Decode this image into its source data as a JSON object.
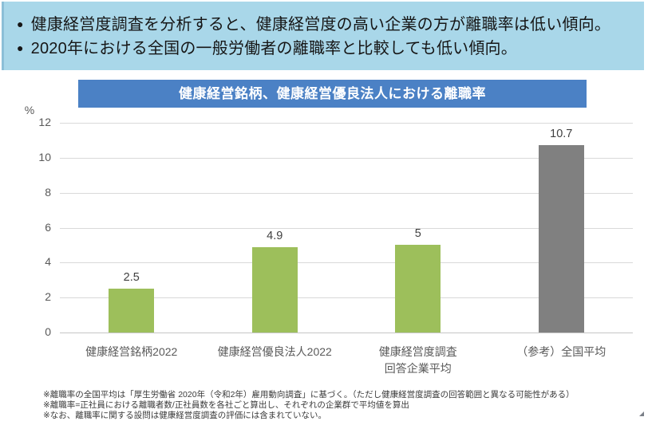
{
  "header": {
    "bullet_glyph": "●",
    "bullets": [
      "健康経営度調査を分析すると、健康経営度の高い企業の方が離職率は低い傾向。",
      "2020年における全国の一般労働者の離職率と比較しても低い傾向。"
    ],
    "background": "#A9D7E9"
  },
  "chart": {
    "title": "健康経営銘柄、健康経営優良法人における離職率",
    "title_bg": "#4B81C5"
  },
  "chart_data": {
    "type": "bar",
    "title": "健康経営銘柄、健康経営優良法人における離職率",
    "categories": [
      "健康経営銘柄2022",
      "健康経営優良法人2022",
      "健康経営度調査\n回答企業平均",
      "（参考）全国平均"
    ],
    "values": [
      2.5,
      4.9,
      5,
      10.7
    ],
    "value_labels": [
      "2.5",
      "4.9",
      "5",
      "10.7"
    ],
    "bar_colors": [
      "#9DBF5B",
      "#9DBF5B",
      "#9DBF5B",
      "#808080"
    ],
    "ylabel": "%",
    "ylim": [
      0,
      12
    ],
    "yticks": [
      0,
      2,
      4,
      6,
      8,
      10,
      12
    ],
    "grid": true,
    "legend": false
  },
  "footnotes": [
    "※離職率の全国平均は「厚生労働省 2020年（令和2年）雇用動向調査」に基づく。（ただし健康経営度調査の回答範囲と異なる可能性がある）",
    "※離職率=正社員における離職者数/正社員数を各社ごと算出し、それぞれの企業群で平均値を算出",
    "※なお、離職率に関する設問は健康経営度調査の評価には含まれていない。"
  ]
}
